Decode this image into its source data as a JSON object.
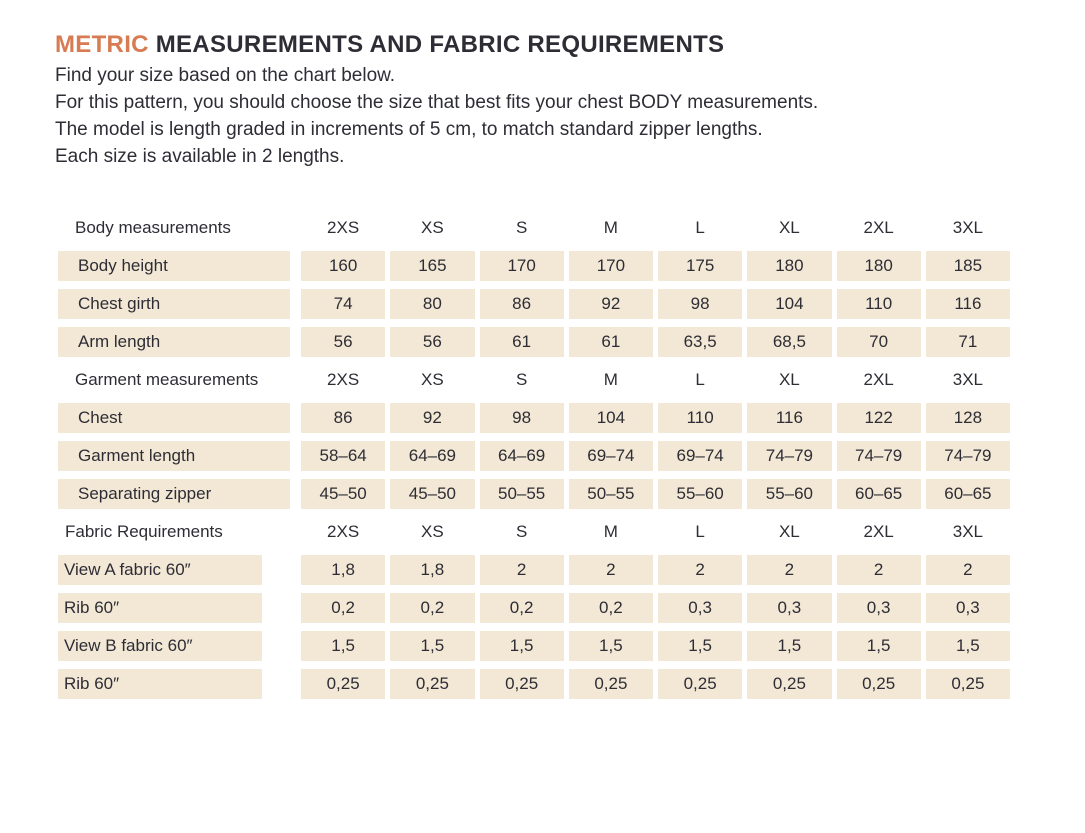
{
  "colors": {
    "accent": "#d67b52",
    "text": "#2e2d35",
    "cell_bg": "#f2e8d5"
  },
  "title": {
    "highlight": "METRIC",
    "rest": " MEASUREMENTS AND FABRIC REQUIREMENTS"
  },
  "intro": {
    "lines": [
      "Find your size based on the chart below.",
      "For this pattern, you should choose the size that best fits your chest BODY measurements.",
      "The model is length graded in increments of 5 cm, to match standard zipper lengths.",
      "Each size is available in 2 lengths."
    ]
  },
  "table": {
    "sizes": [
      "2XS",
      "XS",
      "S",
      "M",
      "L",
      "XL",
      "2XL",
      "3XL"
    ],
    "sections": [
      {
        "header": "Body measurements",
        "style": "body",
        "rows": [
          {
            "label": "Body height",
            "values": [
              "160",
              "165",
              "170",
              "170",
              "175",
              "180",
              "180",
              "185"
            ]
          },
          {
            "label": "Chest girth",
            "values": [
              "74",
              "80",
              "86",
              "92",
              "98",
              "104",
              "110",
              "116"
            ]
          },
          {
            "label": "Arm length",
            "values": [
              "56",
              "56",
              "61",
              "61",
              "63,5",
              "68,5",
              "70",
              "71"
            ]
          }
        ]
      },
      {
        "header": "Garment measurements",
        "style": "body",
        "rows": [
          {
            "label": "Chest",
            "values": [
              "86",
              "92",
              "98",
              "104",
              "110",
              "116",
              "122",
              "128"
            ]
          },
          {
            "label": "Garment length",
            "values": [
              "58–64",
              "64–69",
              "64–69",
              "69–74",
              "69–74",
              "74–79",
              "74–79",
              "74–79"
            ]
          },
          {
            "label": "Separating zipper",
            "values": [
              "45–50",
              "45–50",
              "50–55",
              "50–55",
              "55–60",
              "55–60",
              "60–65",
              "60–65"
            ]
          }
        ]
      },
      {
        "header": "Fabric Requirements",
        "style": "fabric",
        "rows": [
          {
            "label": "View A fabric 60″",
            "values": [
              "1,8",
              "1,8",
              "2",
              "2",
              "2",
              "2",
              "2",
              "2"
            ]
          },
          {
            "label": "Rib 60″",
            "values": [
              "0,2",
              "0,2",
              "0,2",
              "0,2",
              "0,3",
              "0,3",
              "0,3",
              "0,3"
            ]
          },
          {
            "label": "View B fabric 60″",
            "values": [
              "1,5",
              "1,5",
              "1,5",
              "1,5",
              "1,5",
              "1,5",
              "1,5",
              "1,5"
            ]
          },
          {
            "label": "Rib 60″",
            "values": [
              "0,25",
              "0,25",
              "0,25",
              "0,25",
              "0,25",
              "0,25",
              "0,25",
              "0,25"
            ]
          }
        ]
      }
    ]
  }
}
